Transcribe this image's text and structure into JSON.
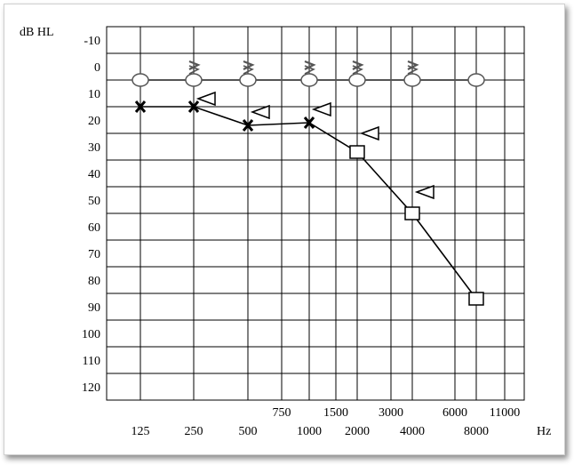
{
  "chart_data": {
    "type": "line",
    "ylabel": "dB HL",
    "xunit": "Hz",
    "y_ticks": [
      "-10",
      "0",
      "10",
      "20",
      "30",
      "40",
      "50",
      "60",
      "70",
      "80",
      "90",
      "100",
      "110",
      "120"
    ],
    "ylim": [
      -10,
      120
    ],
    "y_inverted": true,
    "x_major_labels": [
      "125",
      "250",
      "500",
      "1000",
      "2000",
      "4000",
      "8000"
    ],
    "x_minor_labels": [
      "750",
      "1500",
      "3000",
      "6000",
      "11000"
    ],
    "grid": true,
    "series": [
      {
        "marker": "x",
        "connected": true,
        "points": [
          {
            "x": 125,
            "y": 15
          },
          {
            "x": 250,
            "y": 15
          },
          {
            "x": 500,
            "y": 22
          },
          {
            "x": 1000,
            "y": 21
          },
          {
            "x": 2000,
            "y": 32
          }
        ]
      },
      {
        "marker": "square",
        "connected": true,
        "points": [
          {
            "x": 2000,
            "y": 32
          },
          {
            "x": 4000,
            "y": 55
          },
          {
            "x": 8000,
            "y": 87
          }
        ]
      },
      {
        "marker": "triangle-left",
        "connected": false,
        "points": [
          {
            "x": 250,
            "y": 12
          },
          {
            "x": 500,
            "y": 17
          },
          {
            "x": 1000,
            "y": 16
          },
          {
            "x": 2000,
            "y": 25
          },
          {
            "x": 4000,
            "y": 47
          }
        ]
      },
      {
        "marker": "circle",
        "connected": true,
        "points": [
          {
            "x": 125,
            "y": 5
          },
          {
            "x": 250,
            "y": 5
          },
          {
            "x": 500,
            "y": 5
          },
          {
            "x": 1000,
            "y": 5
          },
          {
            "x": 2000,
            "y": 5
          },
          {
            "x": 4000,
            "y": 5
          },
          {
            "x": 8000,
            "y": 5
          }
        ]
      },
      {
        "marker": "bracket-right",
        "connected": false,
        "points": [
          {
            "x": 250,
            "y": 1
          },
          {
            "x": 500,
            "y": 1
          },
          {
            "x": 1000,
            "y": 1
          },
          {
            "x": 2000,
            "y": 1
          },
          {
            "x": 4000,
            "y": 1
          }
        ]
      }
    ]
  }
}
